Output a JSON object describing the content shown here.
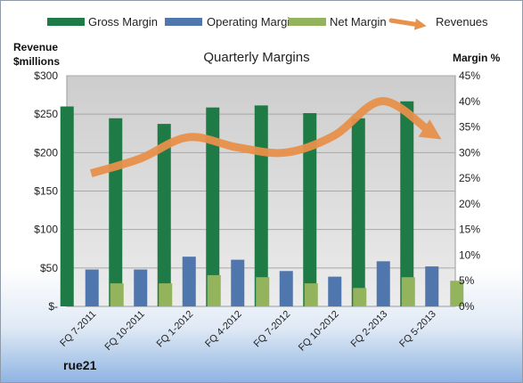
{
  "chart_data": {
    "type": "bar",
    "title": "Quarterly Margins",
    "brand_label": "rue21",
    "categories": [
      "FQ 7-2011",
      "FQ 10-2011",
      "FQ 1-2012",
      "FQ 4-2012",
      "FQ 7-2012",
      "FQ 10-2012",
      "FQ 2-2013",
      "FQ 5-2013"
    ],
    "y_left": {
      "label_line1": "Revenue",
      "label_line2": "$millions",
      "range": [
        0,
        300
      ],
      "ticks": [
        0,
        50,
        100,
        150,
        200,
        250,
        300
      ],
      "tick_labels": [
        "$-",
        "$50",
        "$100",
        "$150",
        "$200",
        "$250",
        "$300"
      ]
    },
    "y_right": {
      "label": "Margin %",
      "range": [
        0,
        45
      ],
      "ticks": [
        0,
        5,
        10,
        15,
        20,
        25,
        30,
        35,
        40,
        45
      ],
      "tick_labels": [
        "0%",
        "5%",
        "10%",
        "15%",
        "20%",
        "25%",
        "30%",
        "35%",
        "40%",
        "45%"
      ]
    },
    "series": [
      {
        "name": "Gross Margin",
        "kind": "bar",
        "axis": "right",
        "color": "#1e7b45",
        "values": [
          39.0,
          36.7,
          35.6,
          38.8,
          39.2,
          37.7,
          36.7,
          40.0
        ]
      },
      {
        "name": "Operating Margin",
        "kind": "bar",
        "axis": "right",
        "color": "#4f76ad",
        "values": [
          7.2,
          7.2,
          9.7,
          9.1,
          6.9,
          5.8,
          8.8,
          7.8
        ]
      },
      {
        "name": "Net Margin",
        "kind": "bar",
        "axis": "right",
        "color": "#93b35c",
        "values": [
          4.5,
          4.5,
          6.1,
          5.7,
          4.5,
          3.6,
          5.7,
          5.0
        ]
      },
      {
        "name": "Revenues",
        "kind": "line",
        "axis": "left",
        "color": "#e8914b",
        "values": [
          173,
          192,
          220,
          207,
          200,
          222,
          267,
          226
        ]
      }
    ],
    "grid": true,
    "legend_position": "top"
  }
}
